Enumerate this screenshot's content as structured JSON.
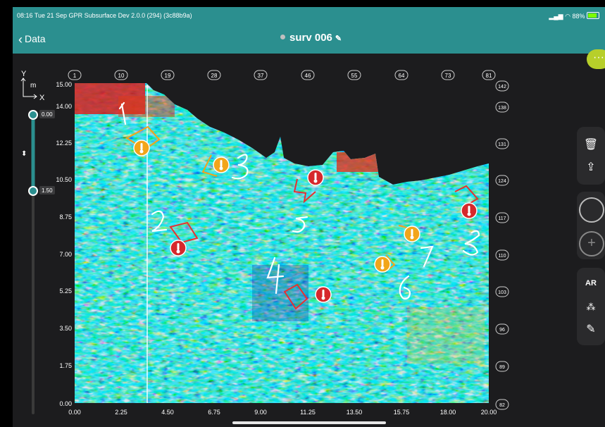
{
  "status_bar": {
    "left_text": "08:16  Tue 21 Sep   GPR Subsurface Dev 2.0.0 (294) (3c88b9a)",
    "right_text": "88%",
    "battery_pct": 88
  },
  "nav": {
    "back_label": "Data",
    "title": "surv 006",
    "back_icon": "chevron-left-icon",
    "edit_icon": "pencil-icon"
  },
  "more_button": {
    "label": "···",
    "color": "#b7cf2a"
  },
  "plot": {
    "y_axis_letter": "Y",
    "x_axis_letter": "X",
    "unit": "m",
    "y_ticks": [
      "15.00",
      "14.00",
      "12.25",
      "10.50",
      "8.75",
      "7.00",
      "5.25",
      "3.50",
      "1.75",
      "0.00"
    ],
    "x_ticks": [
      "0.00",
      "2.25",
      "4.50",
      "6.75",
      "9.00",
      "11.25",
      "13.50",
      "15.75",
      "18.00",
      "20.00"
    ],
    "top_trace_labels": [
      "1",
      "10",
      "19",
      "28",
      "37",
      "46",
      "55",
      "64",
      "73",
      "81"
    ],
    "right_trace_labels": [
      "142",
      "138",
      "131",
      "124",
      "117",
      "110",
      "103",
      "96",
      "89",
      "82"
    ],
    "depth_slider": {
      "top_value": "0.00",
      "bottom_value": "1.50"
    },
    "handwritten_numbers": [
      "1",
      "3",
      "2",
      "5",
      "4",
      "7",
      "6",
      "8"
    ],
    "markers": [
      {
        "id": "m1",
        "color": "#f2a51a"
      },
      {
        "id": "m2",
        "color": "#f2a51a"
      },
      {
        "id": "m3",
        "color": "#d6282c"
      },
      {
        "id": "m4",
        "color": "#d6282c"
      },
      {
        "id": "m5",
        "color": "#d6282c"
      },
      {
        "id": "m6",
        "color": "#f2a51a"
      },
      {
        "id": "m7",
        "color": "#f2a51a"
      },
      {
        "id": "m8",
        "color": "#d6282c"
      }
    ]
  },
  "tools": {
    "delete_icon": "trash-icon",
    "share_icon": "share-icon",
    "record_icon": "record-circle-icon",
    "add_icon": "plus-circle-icon",
    "ar_label": "AR",
    "add_point_icon": "add-point-icon",
    "draw_icon": "pen-icon"
  }
}
